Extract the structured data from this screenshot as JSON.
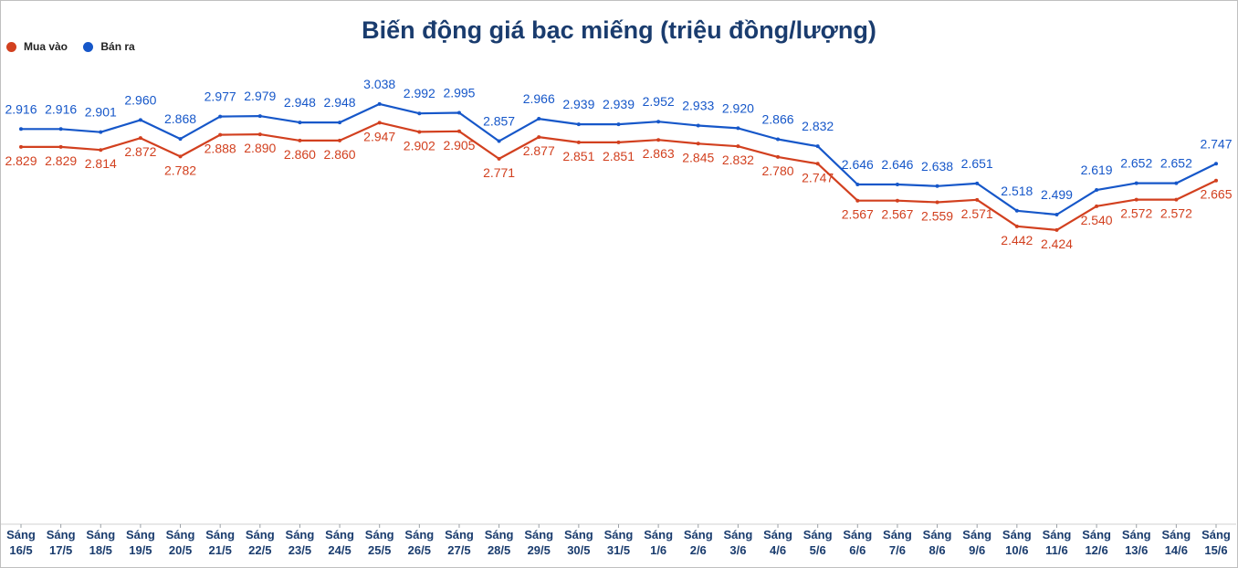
{
  "chart_data": {
    "type": "line",
    "title": "Biến động giá bạc miếng (triệu đồng/lượng)",
    "categories": [
      [
        "Sáng",
        "16/5"
      ],
      [
        "Sáng",
        "17/5"
      ],
      [
        "Sáng",
        "18/5"
      ],
      [
        "Sáng",
        "19/5"
      ],
      [
        "Sáng",
        "20/5"
      ],
      [
        "Sáng",
        "21/5"
      ],
      [
        "Sáng",
        "22/5"
      ],
      [
        "Sáng",
        "23/5"
      ],
      [
        "Sáng",
        "24/5"
      ],
      [
        "Sáng",
        "25/5"
      ],
      [
        "Sáng",
        "26/5"
      ],
      [
        "Sáng",
        "27/5"
      ],
      [
        "Sáng",
        "28/5"
      ],
      [
        "Sáng",
        "29/5"
      ],
      [
        "Sáng",
        "30/5"
      ],
      [
        "Sáng",
        "31/5"
      ],
      [
        "Sáng",
        "1/6"
      ],
      [
        "Sáng",
        "2/6"
      ],
      [
        "Sáng",
        "3/6"
      ],
      [
        "Sáng",
        "4/6"
      ],
      [
        "Sáng",
        "5/6"
      ],
      [
        "Sáng",
        "6/6"
      ],
      [
        "Sáng",
        "7/6"
      ],
      [
        "Sáng",
        "8/6"
      ],
      [
        "Sáng",
        "9/6"
      ],
      [
        "Sáng",
        "10/6"
      ],
      [
        "Sáng",
        "11/6"
      ],
      [
        "Sáng",
        "12/6"
      ],
      [
        "Sáng",
        "13/6"
      ],
      [
        "Sáng",
        "14/6"
      ],
      [
        "Sáng",
        "15/6"
      ]
    ],
    "series": [
      {
        "name": "Mua vào",
        "color": "#d2401f",
        "label_position": "below",
        "values": [
          2.829,
          2.829,
          2.814,
          2.872,
          2.782,
          2.888,
          2.89,
          2.86,
          2.86,
          2.947,
          2.902,
          2.905,
          2.771,
          2.877,
          2.851,
          2.851,
          2.863,
          2.845,
          2.832,
          2.78,
          2.747,
          2.567,
          2.567,
          2.559,
          2.571,
          2.442,
          2.424,
          2.54,
          2.572,
          2.572,
          2.665
        ],
        "labels": [
          "2.829",
          "2.829",
          "2.814",
          "2.872",
          "2.782",
          "2.888",
          "2.890",
          "2.860",
          "2.860",
          "2.947",
          "2.902",
          "2.905",
          "2.771",
          "2.877",
          "2.851",
          "2.851",
          "2.863",
          "2.845",
          "2.832",
          "2.780",
          "2.747",
          "2.567",
          "2.567",
          "2.559",
          "2.571",
          "2.442",
          "2.424",
          "2.540",
          "2.572",
          "2.572",
          "2.665"
        ]
      },
      {
        "name": "Bán ra",
        "color": "#1657c9",
        "label_position": "above",
        "values": [
          2.916,
          2.916,
          2.901,
          2.96,
          2.868,
          2.977,
          2.979,
          2.948,
          2.948,
          3.038,
          2.992,
          2.995,
          2.857,
          2.966,
          2.939,
          2.939,
          2.952,
          2.933,
          2.92,
          2.866,
          2.832,
          2.646,
          2.646,
          2.638,
          2.651,
          2.518,
          2.499,
          2.619,
          2.652,
          2.652,
          2.747
        ],
        "labels": [
          "2.916",
          "2.916",
          "2.901",
          "2.960",
          "2.868",
          "2.977",
          "2.979",
          "2.948",
          "2.948",
          "3.038",
          "2.992",
          "2.995",
          "2.857",
          "2.966",
          "2.939",
          "2.939",
          "2.952",
          "2.933",
          "2.920",
          "2.866",
          "2.832",
          "2.646",
          "2.646",
          "2.638",
          "2.651",
          "2.518",
          "2.499",
          "2.619",
          "2.652",
          "2.652",
          "2.747"
        ]
      }
    ],
    "legend": "top-left",
    "grid": false,
    "axis_color": "#1a3c6e",
    "ylim": [
      1.0,
      3.42
    ]
  }
}
